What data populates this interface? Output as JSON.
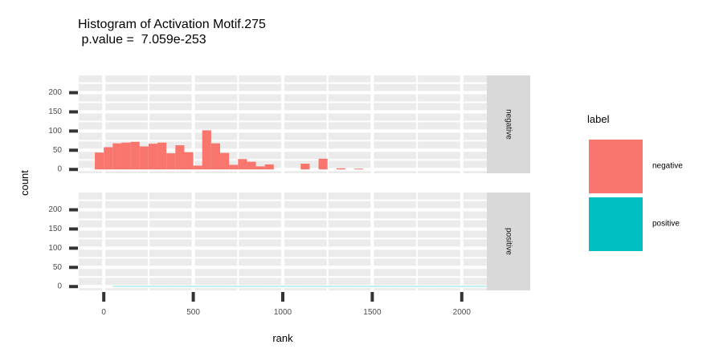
{
  "chart_data": {
    "type": "bar",
    "title": "Histogram of Activation Motif.275",
    "subtitle": " p.value =  7.059e-253",
    "xlabel": "rank",
    "ylabel": "count",
    "xlim": [
      -140,
      2140
    ],
    "ylim": [
      -10,
      245
    ],
    "x_ticks": [
      0,
      500,
      1000,
      1500,
      2000
    ],
    "y_ticks": [
      0,
      50,
      100,
      150,
      200
    ],
    "bin_width": 50,
    "legend": {
      "title": "label",
      "position": "right"
    },
    "series": [
      {
        "name": "negative",
        "color": "#F8766D",
        "bins": [
          [
            -25,
            44
          ],
          [
            25,
            58
          ],
          [
            75,
            68
          ],
          [
            125,
            70
          ],
          [
            175,
            72
          ],
          [
            225,
            60
          ],
          [
            275,
            67
          ],
          [
            325,
            70
          ],
          [
            375,
            42
          ],
          [
            425,
            63
          ],
          [
            475,
            45
          ],
          [
            525,
            10
          ],
          [
            575,
            102
          ],
          [
            625,
            68
          ],
          [
            675,
            43
          ],
          [
            725,
            12
          ],
          [
            775,
            27
          ],
          [
            825,
            20
          ],
          [
            875,
            8
          ],
          [
            925,
            13
          ],
          [
            1125,
            15
          ],
          [
            1225,
            28
          ],
          [
            1325,
            3
          ],
          [
            1425,
            2
          ]
        ]
      },
      {
        "name": "positive",
        "color": "#00BFC4",
        "bins": [
          [
            75,
            1
          ],
          [
            125,
            1
          ],
          [
            175,
            1
          ],
          [
            225,
            1
          ],
          [
            275,
            1
          ],
          [
            325,
            1
          ],
          [
            375,
            1
          ],
          [
            425,
            1
          ],
          [
            475,
            1
          ],
          [
            525,
            1
          ],
          [
            575,
            1
          ],
          [
            625,
            1
          ],
          [
            675,
            1
          ],
          [
            725,
            1
          ],
          [
            775,
            1
          ],
          [
            825,
            1
          ],
          [
            875,
            1
          ],
          [
            925,
            1
          ],
          [
            975,
            1
          ],
          [
            1025,
            1
          ],
          [
            1075,
            1
          ],
          [
            1125,
            1
          ],
          [
            1175,
            1
          ],
          [
            1225,
            1
          ],
          [
            1275,
            1
          ],
          [
            1325,
            1
          ],
          [
            1375,
            1
          ],
          [
            1425,
            1
          ],
          [
            1475,
            1
          ],
          [
            1525,
            1
          ],
          [
            1575,
            1
          ],
          [
            1625,
            1
          ],
          [
            1675,
            1
          ],
          [
            1725,
            1
          ],
          [
            1775,
            1
          ],
          [
            1825,
            1
          ],
          [
            1875,
            1
          ],
          [
            1925,
            1
          ],
          [
            1975,
            1
          ],
          [
            2025,
            1
          ],
          [
            2075,
            1
          ],
          [
            2125,
            1
          ]
        ]
      }
    ]
  }
}
